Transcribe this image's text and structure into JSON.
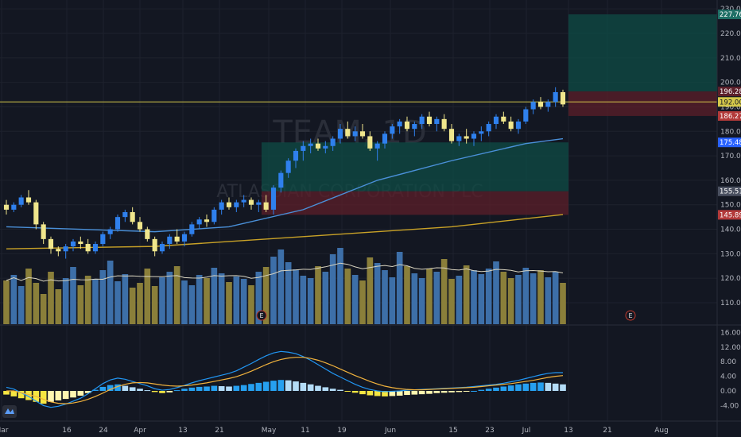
{
  "symbol": "TEAM, 1D",
  "company": "ATLASSIAN CORPORATION PLC",
  "colors": {
    "bg": "#131722",
    "grid": "#1e222d",
    "up": "#2f80ed",
    "down": "#f0e68c",
    "volume_up": "#3d6fa8",
    "volume_down": "#8a7f3a",
    "ma50": "#4a90d9",
    "ma200": "#c9a227",
    "hline": "#d4c84a",
    "macd": "#2196f3",
    "signal": "#f2b33d",
    "profit_zone": "#0f4c46",
    "loss_zone": "#5c1f2a"
  },
  "chart_data": {
    "type": "candlestick",
    "price_axis": {
      "ticks": [
        110,
        120,
        130,
        140,
        150,
        160,
        170,
        180,
        190,
        200,
        210,
        220,
        230
      ],
      "ylim": [
        104,
        230
      ]
    },
    "x_axis_labels": [
      {
        "label": "Mar",
        "date": "2021-03-01"
      },
      {
        "label": "16",
        "date": "2021-03-16"
      },
      {
        "label": "24",
        "date": "2021-03-24"
      },
      {
        "label": "Apr",
        "date": "2021-04-01"
      },
      {
        "label": "13",
        "date": "2021-04-13"
      },
      {
        "label": "21",
        "date": "2021-04-21"
      },
      {
        "label": "May",
        "date": "2021-05-03"
      },
      {
        "label": "11",
        "date": "2021-05-11"
      },
      {
        "label": "19",
        "date": "2021-05-19"
      },
      {
        "label": "Jun",
        "date": "2021-06-01"
      },
      {
        "label": "15",
        "date": "2021-06-15"
      },
      {
        "label": "23",
        "date": "2021-06-23"
      },
      {
        "label": "Jul",
        "date": "2021-07-01"
      },
      {
        "label": "13",
        "date": "2021-07-13"
      },
      {
        "label": "21",
        "date": "2021-07-21"
      },
      {
        "label": "Aug",
        "date": "2021-08-02"
      }
    ],
    "price_labels": [
      {
        "value": 227.76,
        "text": "227.76",
        "color": "#1f6f66"
      },
      {
        "value": 196.28,
        "text": "196.28",
        "color": "#5c1f2a"
      },
      {
        "value": 192.0,
        "text": "192.00",
        "color": "#d4c84a"
      },
      {
        "value": 186.27,
        "text": "186.27",
        "color": "#b33a3a"
      },
      {
        "value": 175.48,
        "text": "175.48",
        "color": "#2962ff"
      },
      {
        "value": 155.51,
        "text": "155.51",
        "color": "#4a5060"
      },
      {
        "value": 145.89,
        "text": "145.89",
        "color": "#b33a3a"
      }
    ],
    "candles": [
      [
        150,
        152,
        146,
        148
      ],
      [
        148,
        151,
        147,
        150
      ],
      [
        150,
        154,
        149,
        153
      ],
      [
        153,
        156,
        150,
        151
      ],
      [
        151,
        152,
        140,
        142
      ],
      [
        142,
        143,
        134,
        136
      ],
      [
        136,
        137,
        130,
        132
      ],
      [
        132,
        133,
        129,
        131
      ],
      [
        131,
        134,
        128,
        133
      ],
      [
        133,
        136,
        131,
        135
      ],
      [
        135,
        137,
        132,
        134
      ],
      [
        134,
        136,
        130,
        131
      ],
      [
        131,
        135,
        130,
        134
      ],
      [
        134,
        139,
        133,
        138
      ],
      [
        138,
        141,
        136,
        140
      ],
      [
        140,
        146,
        139,
        145
      ],
      [
        145,
        148,
        143,
        147
      ],
      [
        147,
        149,
        142,
        143
      ],
      [
        143,
        145,
        139,
        140
      ],
      [
        140,
        141,
        135,
        136
      ],
      [
        136,
        137,
        129,
        131
      ],
      [
        131,
        135,
        130,
        134
      ],
      [
        134,
        138,
        132,
        137
      ],
      [
        137,
        140,
        134,
        135
      ],
      [
        135,
        139,
        133,
        138
      ],
      [
        138,
        143,
        137,
        142
      ],
      [
        142,
        145,
        140,
        144
      ],
      [
        144,
        146,
        141,
        143
      ],
      [
        143,
        149,
        142,
        148
      ],
      [
        148,
        152,
        146,
        151
      ],
      [
        151,
        153,
        148,
        149
      ],
      [
        149,
        152,
        147,
        151
      ],
      [
        151,
        154,
        149,
        152
      ],
      [
        152,
        153,
        148,
        150
      ],
      [
        150,
        152,
        147,
        151
      ],
      [
        151,
        154,
        147,
        148
      ],
      [
        148,
        158,
        146,
        157
      ],
      [
        157,
        164,
        155,
        163
      ],
      [
        163,
        169,
        161,
        168
      ],
      [
        168,
        173,
        165,
        172
      ],
      [
        172,
        176,
        168,
        174
      ],
      [
        174,
        177,
        171,
        175
      ],
      [
        175,
        177,
        172,
        173
      ],
      [
        173,
        176,
        171,
        174
      ],
      [
        174,
        178,
        172,
        177
      ],
      [
        177,
        183,
        175,
        181
      ],
      [
        181,
        184,
        177,
        178
      ],
      [
        178,
        182,
        176,
        180
      ],
      [
        180,
        183,
        177,
        178
      ],
      [
        178,
        180,
        172,
        173
      ],
      [
        173,
        176,
        168,
        175
      ],
      [
        175,
        180,
        173,
        179
      ],
      [
        179,
        183,
        177,
        182
      ],
      [
        182,
        185,
        179,
        184
      ],
      [
        184,
        186,
        180,
        181
      ],
      [
        181,
        184,
        178,
        183
      ],
      [
        183,
        187,
        181,
        186
      ],
      [
        186,
        188,
        182,
        183
      ],
      [
        183,
        186,
        180,
        185
      ],
      [
        185,
        187,
        180,
        181
      ],
      [
        181,
        183,
        175,
        176
      ],
      [
        176,
        179,
        174,
        178
      ],
      [
        178,
        181,
        175,
        177
      ],
      [
        177,
        180,
        174,
        179
      ],
      [
        179,
        182,
        176,
        180
      ],
      [
        180,
        184,
        178,
        183
      ],
      [
        183,
        187,
        181,
        186
      ],
      [
        186,
        188,
        183,
        184
      ],
      [
        184,
        186,
        180,
        181
      ],
      [
        181,
        185,
        179,
        184
      ],
      [
        184,
        190,
        183,
        189
      ],
      [
        189,
        193,
        187,
        192
      ],
      [
        192,
        194,
        189,
        190
      ],
      [
        190,
        193,
        188,
        192
      ],
      [
        192,
        198,
        190,
        196
      ],
      [
        196,
        197,
        190,
        191
      ]
    ],
    "series": [
      {
        "name": "MA 50",
        "points": [
          [
            0,
            141
          ],
          [
            10,
            140
          ],
          [
            20,
            139
          ],
          [
            30,
            141
          ],
          [
            40,
            148
          ],
          [
            50,
            160
          ],
          [
            60,
            168
          ],
          [
            70,
            175
          ],
          [
            75,
            177
          ]
        ]
      },
      {
        "name": "MA 200",
        "points": [
          [
            0,
            132
          ],
          [
            20,
            133
          ],
          [
            40,
            137
          ],
          [
            60,
            141
          ],
          [
            75,
            146
          ]
        ]
      }
    ],
    "volume": {
      "values": [
        55,
        62,
        48,
        70,
        52,
        38,
        66,
        44,
        58,
        72,
        49,
        61,
        57,
        68,
        80,
        54,
        63,
        46,
        52,
        70,
        48,
        59,
        66,
        73,
        55,
        49,
        62,
        58,
        71,
        64,
        53,
        60,
        57,
        49,
        66,
        72,
        85,
        94,
        78,
        69,
        61,
        58,
        73,
        66,
        88,
        96,
        70,
        62,
        55,
        84,
        77,
        68,
        59,
        91,
        73,
        64,
        58,
        70,
        66,
        82,
        57,
        61,
        74,
        68,
        63,
        70,
        79,
        66,
        58,
        62,
        71,
        64,
        68,
        59,
        66,
        52
      ],
      "ma_level": 60
    },
    "macd": {
      "axis_ticks": [
        -4.0,
        0.0,
        4.0,
        8.0,
        12.0,
        16.0
      ],
      "ylim": [
        -6,
        16
      ],
      "hist": [
        -1,
        -1.5,
        -2,
        -2.5,
        -3,
        -3.5,
        -3,
        -2.6,
        -2.2,
        -1.8,
        -1.3,
        -0.6,
        0.3,
        1.1,
        1.6,
        1.8,
        1.4,
        1,
        0.6,
        0.2,
        -0.3,
        -0.6,
        -0.4,
        0.2,
        0.6,
        0.9,
        1.1,
        1.2,
        1.4,
        1.3,
        1.2,
        1.4,
        1.6,
        1.9,
        2.2,
        2.5,
        2.8,
        3,
        2.9,
        2.6,
        2.2,
        1.8,
        1.4,
        1,
        0.6,
        0.3,
        -0.1,
        -0.5,
        -0.9,
        -1.2,
        -1.4,
        -1.5,
        -1.4,
        -1.3,
        -1.1,
        -1,
        -0.9,
        -0.8,
        -0.6,
        -0.5,
        -0.4,
        -0.3,
        -0.2,
        0,
        0.3,
        0.6,
        0.9,
        1.2,
        1.5,
        1.8,
        2,
        2.2,
        2.3,
        2.2,
        2,
        1.8
      ],
      "macd_line": [
        1,
        0.5,
        -0.5,
        -1.5,
        -2.8,
        -4,
        -4.5,
        -4.2,
        -3.6,
        -2.8,
        -2,
        -0.8,
        0.6,
        2,
        3,
        3.5,
        3.2,
        2.6,
        2,
        1.4,
        0.6,
        0.2,
        0.4,
        0.9,
        1.5,
        2.2,
        2.8,
        3.3,
        3.8,
        4.3,
        4.8,
        5.5,
        6.5,
        7.5,
        8.6,
        9.6,
        10.4,
        10.8,
        10.6,
        10.2,
        9.4,
        8.4,
        7.2,
        6,
        4.8,
        3.8,
        2.8,
        1.8,
        1,
        0.4,
        0,
        -0.2,
        -0.1,
        0,
        0.2,
        0.3,
        0.4,
        0.5,
        0.6,
        0.7,
        0.8,
        0.9,
        1,
        1.2,
        1.4,
        1.6,
        1.8,
        2.1,
        2.5,
        2.9,
        3.4,
        3.9,
        4.4,
        4.8,
        5,
        5
      ],
      "signal_line": [
        0,
        0,
        -0.5,
        -1,
        -1.5,
        -2.3,
        -3,
        -3.4,
        -3.5,
        -3.3,
        -2.9,
        -2.3,
        -1.5,
        -0.6,
        0.4,
        1.2,
        1.8,
        2.2,
        2.3,
        2.2,
        1.9,
        1.6,
        1.4,
        1.3,
        1.4,
        1.6,
        1.9,
        2.2,
        2.6,
        3,
        3.4,
        3.9,
        4.6,
        5.4,
        6.3,
        7.2,
        8,
        8.6,
        9,
        9.2,
        9.2,
        8.9,
        8.4,
        7.7,
        6.9,
        6,
        5.1,
        4.2,
        3.4,
        2.6,
        1.9,
        1.3,
        0.9,
        0.6,
        0.4,
        0.3,
        0.3,
        0.4,
        0.5,
        0.6,
        0.7,
        0.8,
        0.9,
        1,
        1.2,
        1.4,
        1.6,
        1.8,
        2,
        2.3,
        2.6,
        2.9,
        3.3,
        3.7,
        4,
        4.2
      ]
    },
    "earnings_markers": [
      {
        "label": "E",
        "position": "early May"
      },
      {
        "label": "E",
        "position": "late July"
      }
    ],
    "zones": [
      {
        "kind": "profit",
        "from_price": 155.51,
        "to_price": 175.48,
        "start": "May",
        "end": "Jul 13"
      },
      {
        "kind": "loss",
        "from_price": 145.89,
        "to_price": 155.51,
        "start": "May",
        "end": "Jul 13"
      },
      {
        "kind": "profit",
        "from_price": 196.28,
        "to_price": 227.76,
        "start": "Jul 13",
        "end": "right edge"
      },
      {
        "kind": "loss",
        "from_price": 186.27,
        "to_price": 196.28,
        "start": "Jul 13",
        "end": "right edge"
      }
    ],
    "horizontal_line": 192.0
  }
}
